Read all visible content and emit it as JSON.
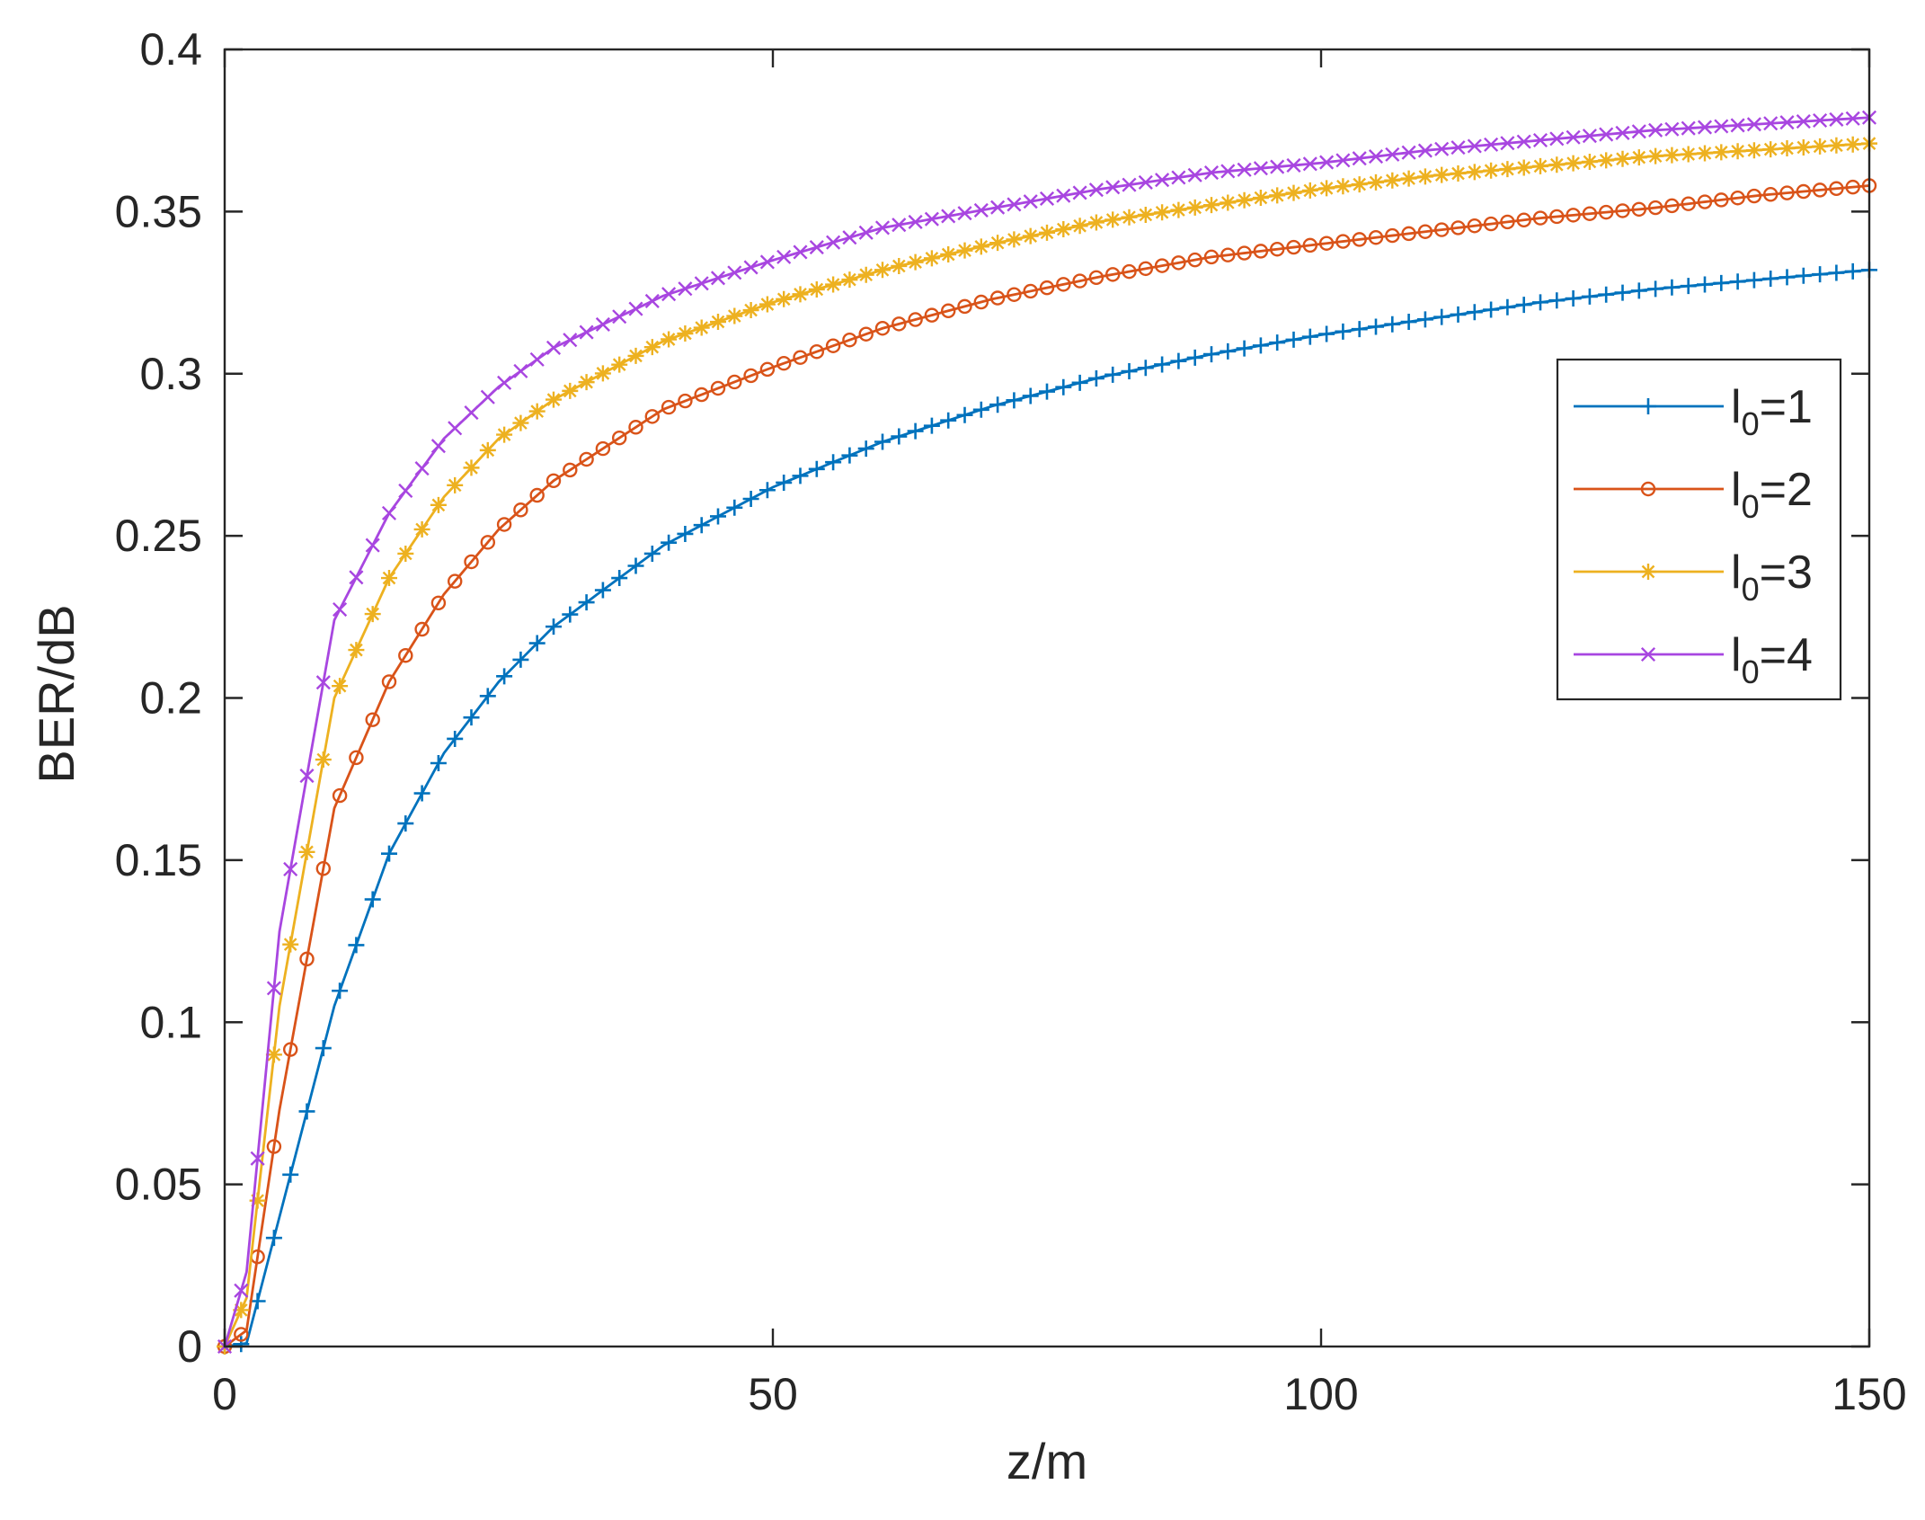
{
  "chart_data": {
    "type": "line",
    "title": "",
    "xlabel": "z/m",
    "ylabel": "BER/dB",
    "xlim": [
      0,
      150
    ],
    "ylim": [
      0,
      0.4
    ],
    "xticks": [
      "0",
      "50",
      "100",
      "150"
    ],
    "yticks": [
      "0",
      "0.05",
      "0.1",
      "0.15",
      "0.2",
      "0.25",
      "0.3",
      "0.35",
      "0.4"
    ],
    "grid": false,
    "legend_position": "right",
    "series": [
      {
        "name": "l0=1",
        "legend_main": "l",
        "legend_sub": "0",
        "legend_rest": "=1",
        "color": "#0072BD",
        "marker": "plus",
        "x": [
          0,
          2,
          5,
          10,
          15,
          20,
          25,
          30,
          40,
          50,
          60,
          70,
          80,
          90,
          100,
          110,
          120,
          130,
          140,
          150
        ],
        "y": [
          0,
          0.001,
          0.04,
          0.105,
          0.152,
          0.183,
          0.205,
          0.222,
          0.247,
          0.265,
          0.279,
          0.29,
          0.299,
          0.306,
          0.312,
          0.317,
          0.322,
          0.326,
          0.329,
          0.332
        ]
      },
      {
        "name": "l0=2",
        "legend_main": "l",
        "legend_sub": "0",
        "legend_rest": "=2",
        "color": "#D95319",
        "marker": "circle",
        "x": [
          0,
          2,
          5,
          10,
          15,
          20,
          25,
          30,
          40,
          50,
          60,
          70,
          80,
          90,
          100,
          110,
          120,
          130,
          140,
          150
        ],
        "y": [
          0,
          0.005,
          0.073,
          0.166,
          0.205,
          0.232,
          0.252,
          0.267,
          0.289,
          0.302,
          0.314,
          0.323,
          0.33,
          0.336,
          0.34,
          0.344,
          0.348,
          0.351,
          0.355,
          0.358
        ]
      },
      {
        "name": "l0=3",
        "legend_main": "l",
        "legend_sub": "0",
        "legend_rest": "=3",
        "color": "#EDB120",
        "marker": "asterisk",
        "x": [
          0,
          2,
          5,
          10,
          15,
          20,
          25,
          30,
          40,
          50,
          60,
          70,
          80,
          90,
          100,
          110,
          120,
          130,
          140,
          150
        ],
        "y": [
          0,
          0.015,
          0.105,
          0.2,
          0.237,
          0.262,
          0.28,
          0.292,
          0.31,
          0.322,
          0.332,
          0.34,
          0.347,
          0.352,
          0.357,
          0.361,
          0.364,
          0.367,
          0.369,
          0.371
        ]
      },
      {
        "name": "l0=4",
        "legend_main": "l",
        "legend_sub": "0",
        "legend_rest": "=4",
        "color": "#A846E0",
        "marker": "cross",
        "x": [
          0,
          2,
          5,
          10,
          15,
          20,
          25,
          30,
          40,
          50,
          60,
          70,
          80,
          90,
          100,
          110,
          120,
          130,
          140,
          150
        ],
        "y": [
          0,
          0.023,
          0.128,
          0.224,
          0.257,
          0.28,
          0.296,
          0.308,
          0.324,
          0.335,
          0.345,
          0.351,
          0.357,
          0.362,
          0.365,
          0.369,
          0.372,
          0.375,
          0.377,
          0.379
        ]
      }
    ]
  }
}
